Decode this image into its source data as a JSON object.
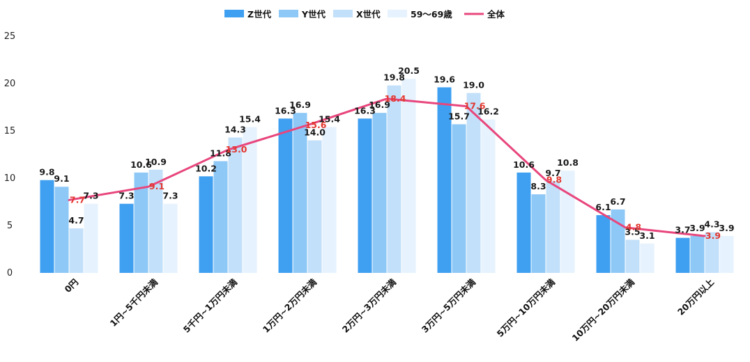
{
  "chart_data": {
    "type": "bar",
    "title": "",
    "xlabel": "",
    "ylabel": "",
    "ylim": [
      0,
      25
    ],
    "yticks": [
      0,
      5,
      10,
      15,
      20,
      25
    ],
    "legend_position": "top-center",
    "categories": [
      "0円",
      "1円~5千円未満",
      "5千円~1万円未満",
      "1万円~2万円未満",
      "2万円~3万円未満",
      "3万円~5万円未満",
      "5万円~10万円未満",
      "10万円~20万円未満",
      "20万円以上"
    ],
    "series": [
      {
        "name": "Z世代",
        "kind": "bar",
        "color": "#3f9ff0",
        "values": [
          9.8,
          7.3,
          10.2,
          16.3,
          16.3,
          19.6,
          10.6,
          6.1,
          3.7
        ]
      },
      {
        "name": "Y世代",
        "kind": "bar",
        "color": "#8ec8f6",
        "values": [
          9.1,
          10.6,
          11.8,
          16.9,
          16.9,
          15.7,
          8.3,
          6.7,
          3.9
        ]
      },
      {
        "name": "X世代",
        "kind": "bar",
        "color": "#c3e0fa",
        "values": [
          4.7,
          10.9,
          14.3,
          14.0,
          19.8,
          19.0,
          9.7,
          3.5,
          4.3
        ]
      },
      {
        "name": "59～69歳",
        "kind": "bar",
        "color": "#e6f2fd",
        "values": [
          7.3,
          7.3,
          15.4,
          15.4,
          20.5,
          16.2,
          10.8,
          3.1,
          3.9
        ]
      },
      {
        "name": "全体",
        "kind": "line",
        "color": "#e8467c",
        "label_color": "#e2372f",
        "values": [
          7.7,
          9.1,
          13.0,
          15.6,
          18.4,
          17.6,
          9.8,
          4.8,
          3.9
        ]
      }
    ]
  }
}
